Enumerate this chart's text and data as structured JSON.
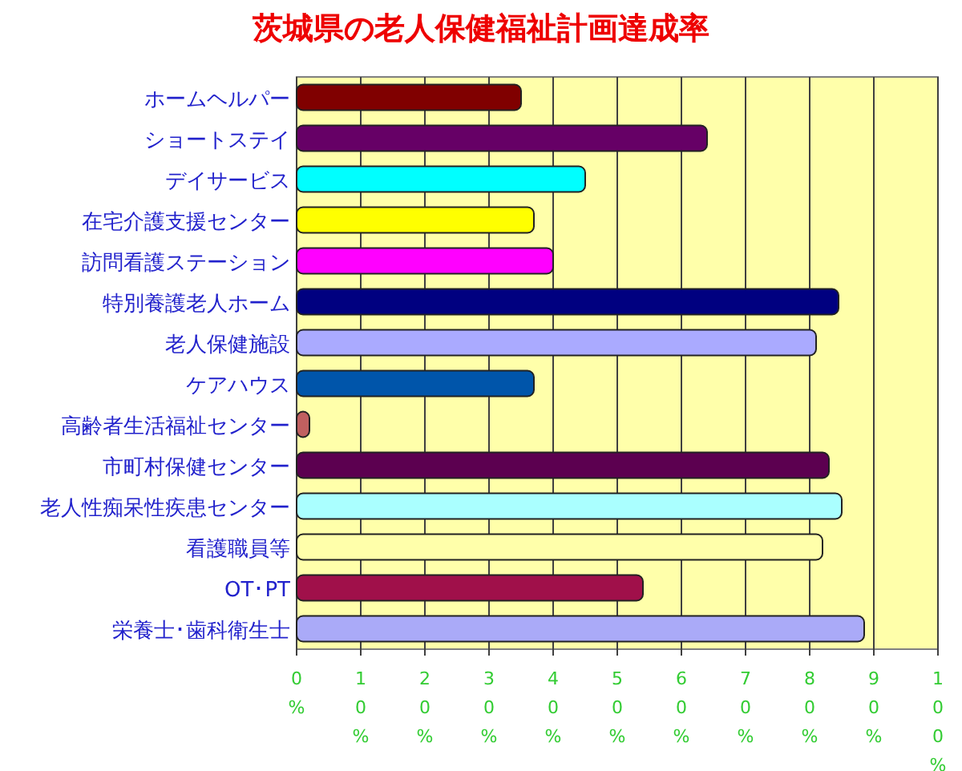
{
  "chart_data": {
    "type": "bar",
    "orientation": "horizontal",
    "title": "茨城県の老人保健福祉計画達成率",
    "categories": [
      "ホームヘルパー",
      "ショートステイ",
      "デイサービス",
      "在宅介護支援センター",
      "訪問看護ステーション",
      "特別養護老人ホーム",
      "老人保健施設",
      "ケアハウス",
      "高齢者生活福祉センター",
      "市町村保健センター",
      "老人性痴呆性疾患センター",
      "看護職員等",
      "OT･PT",
      "栄養士･歯科衛生士"
    ],
    "values": [
      35,
      64,
      45,
      37,
      40,
      84.5,
      81,
      37,
      2,
      83,
      85,
      82,
      54,
      88.5
    ],
    "colors": [
      "#800000",
      "#660066",
      "#00ffff",
      "#ffff00",
      "#ff00ff",
      "#000080",
      "#aaaaff",
      "#0055aa",
      "#c06060",
      "#5c0050",
      "#aaffff",
      "#ffffaa",
      "#a0104a",
      "#aaaaf8"
    ],
    "xlim": [
      0,
      100
    ],
    "xticks": [
      {
        "value": 0,
        "label": "0%"
      },
      {
        "value": 10,
        "label": "10%"
      },
      {
        "value": 20,
        "label": "20%"
      },
      {
        "value": 30,
        "label": "30%"
      },
      {
        "value": 40,
        "label": "40%"
      },
      {
        "value": 50,
        "label": "50%"
      },
      {
        "value": 60,
        "label": "60%"
      },
      {
        "value": 70,
        "label": "70%"
      },
      {
        "value": 80,
        "label": "80%"
      },
      {
        "value": 90,
        "label": "90%"
      },
      {
        "value": 100,
        "label": "100%"
      }
    ],
    "grid": "x"
  }
}
